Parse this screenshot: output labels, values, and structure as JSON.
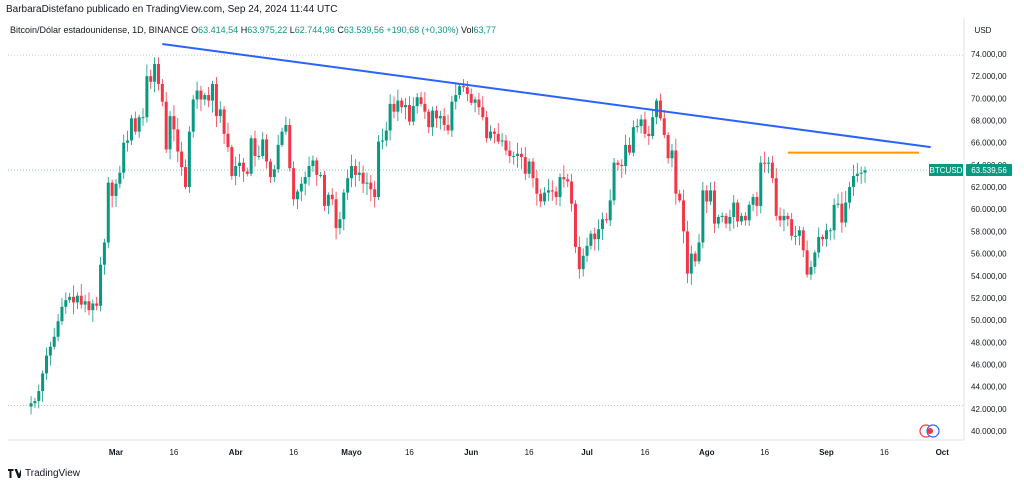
{
  "header": {
    "publisher_text": "BarbaraDistefano publicado en TradingView.com, Sep 24, 2024 11:44 UTC"
  },
  "legend": {
    "symbol": "Bitcoin/Dólar estadounidense, 1D, BINANCE",
    "open_label": "O",
    "open": "63.414,54",
    "high_label": "H",
    "high": "63.975,22",
    "low_label": "L",
    "low": "62.744,96",
    "close_label": "C",
    "close": "63.539,56",
    "change": "+190,68 (+0,30%)",
    "volume_label": "Vol",
    "volume": "63,77"
  },
  "currency": "USD",
  "footer": {
    "brand": "TradingView"
  },
  "colors": {
    "up": "#089981",
    "down": "#f23645",
    "trendline": "#2962ff",
    "resistance": "#ff9800",
    "price_tag": "#089981"
  },
  "chart_data": {
    "type": "candlestick",
    "symbol_tag": "BTCUSD",
    "last_price_label": "63.539,56",
    "last_price": 63539.56,
    "ylim": [
      39000,
      76500
    ],
    "y_ticks": [
      {
        "v": 40000,
        "label": "40.000,00"
      },
      {
        "v": 42000,
        "label": "42.000,00"
      },
      {
        "v": 44000,
        "label": "44.000,00"
      },
      {
        "v": 46000,
        "label": "46.000,00"
      },
      {
        "v": 48000,
        "label": "48.000,00"
      },
      {
        "v": 50000,
        "label": "50.000,00"
      },
      {
        "v": 52000,
        "label": "52.000,00"
      },
      {
        "v": 54000,
        "label": "54.000,00"
      },
      {
        "v": 56000,
        "label": "56.000,00"
      },
      {
        "v": 58000,
        "label": "58.000,00"
      },
      {
        "v": 60000,
        "label": "60.000,00"
      },
      {
        "v": 62000,
        "label": "62.000,00"
      },
      {
        "v": 64000,
        "label": "64.000,00"
      },
      {
        "v": 66000,
        "label": "66.000,00"
      },
      {
        "v": 68000,
        "label": "68.000,00"
      },
      {
        "v": 70000,
        "label": "70.000,00"
      },
      {
        "v": 72000,
        "label": "72.000,00"
      },
      {
        "v": 74000,
        "label": "74.000,00"
      }
    ],
    "x_ticks": [
      {
        "date": "2024-03-01",
        "label": "Mar",
        "bold": true
      },
      {
        "date": "2024-03-16",
        "label": "16"
      },
      {
        "date": "2024-04-01",
        "label": "Abr",
        "bold": true
      },
      {
        "date": "2024-04-16",
        "label": "16"
      },
      {
        "date": "2024-05-01",
        "label": "Mayo",
        "bold": true
      },
      {
        "date": "2024-05-16",
        "label": "16"
      },
      {
        "date": "2024-06-01",
        "label": "Jun",
        "bold": true
      },
      {
        "date": "2024-06-16",
        "label": "16"
      },
      {
        "date": "2024-07-01",
        "label": "Jul",
        "bold": true
      },
      {
        "date": "2024-07-16",
        "label": "16"
      },
      {
        "date": "2024-08-01",
        "label": "Ago",
        "bold": true
      },
      {
        "date": "2024-08-16",
        "label": "16"
      },
      {
        "date": "2024-09-01",
        "label": "Sep",
        "bold": true
      },
      {
        "date": "2024-09-16",
        "label": "16"
      },
      {
        "date": "2024-10-01",
        "label": "Oct",
        "bold": true
      }
    ],
    "start_date": "2024-02-08",
    "closes": [
      42500,
      42700,
      43600,
      45200,
      46800,
      47600,
      48500,
      49900,
      51200,
      51800,
      52100,
      51600,
      52200,
      51400,
      51700,
      50900,
      51500,
      51300,
      55000,
      57000,
      62400,
      61200,
      62300,
      63300,
      66000,
      66200,
      68200,
      67000,
      68300,
      68300,
      72000,
      71500,
      73100,
      71300,
      69700,
      65400,
      68400,
      67200,
      65200,
      63800,
      62000,
      67000,
      69900,
      70700,
      69900,
      70300,
      69800,
      71300,
      68400,
      69000,
      66800,
      65600,
      63000,
      63900,
      64200,
      63400,
      63200,
      66400,
      64800,
      64800,
      66300,
      64300,
      62900,
      63600,
      65800,
      67000,
      67600,
      63700,
      60900,
      61600,
      62300,
      62900,
      63900,
      64400,
      63100,
      63100,
      60300,
      61300,
      60900,
      58300,
      59100,
      61500,
      62800,
      63900,
      63100,
      63300,
      62300,
      62400,
      61800,
      61100,
      66100,
      66200,
      67100,
      69500,
      68800,
      69800,
      69200,
      69400,
      67900,
      69300,
      70100,
      69500,
      68800,
      67400,
      68900,
      68200,
      68400,
      67600,
      67100,
      69700,
      70300,
      71100,
      71000,
      70400,
      69600,
      69900,
      69200,
      68300,
      66400,
      67000,
      66800,
      66100,
      66200,
      65300,
      64800,
      64800,
      65000,
      64700,
      63200,
      64300,
      62800,
      61400,
      60700,
      61500,
      61700,
      61600,
      61100,
      62900,
      62700,
      62500,
      60500,
      56600,
      54600,
      55800,
      56700,
      57800,
      57300,
      58200,
      59100,
      59000,
      60800,
      64200,
      64000,
      63900,
      65800,
      65100,
      67400,
      67500,
      68100,
      66800,
      66600,
      68300,
      69800,
      68200,
      66700,
      64600,
      65300,
      61400,
      60800,
      58000,
      54200,
      56000,
      55300,
      57000,
      61700,
      60700,
      61700,
      58700,
      59300,
      59400,
      58700,
      59300,
      60600,
      58900,
      59400,
      59000,
      60400,
      61100,
      60300,
      64200,
      64100,
      64200,
      62800,
      59400,
      59000,
      59400,
      59100,
      57600,
      57600,
      58100,
      56300,
      54100,
      54800,
      56100,
      57500,
      57300,
      58100,
      58100,
      60400,
      60500,
      58800,
      60600,
      62000,
      63000,
      63200,
      63300,
      63500
    ],
    "volume": 63.77,
    "trendline": {
      "from": {
        "date": "2024-03-13",
        "price": 74900
      },
      "to": {
        "date": "2024-09-28",
        "price": 65600
      }
    },
    "resistance": {
      "from": {
        "date": "2024-08-22",
        "price": 65100
      },
      "to": {
        "date": "2024-09-25",
        "price": 65100
      }
    },
    "dotted_lines": [
      73900,
      42300
    ],
    "grid": false,
    "legend": "top-left"
  }
}
